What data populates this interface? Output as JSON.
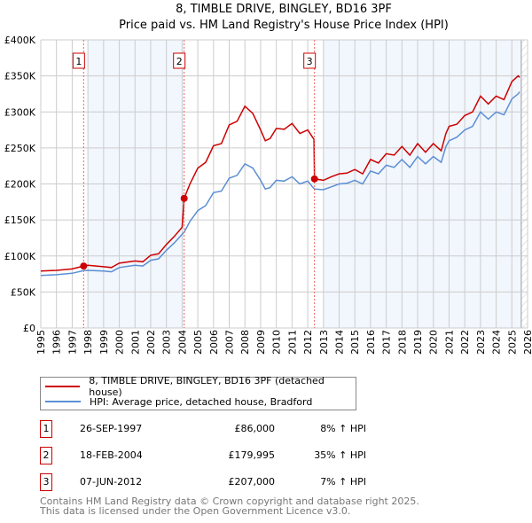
{
  "chart_data": {
    "type": "line",
    "title": "8, TIMBLE DRIVE, BINGLEY, BD16 3PF",
    "subtitle": "Price paid vs. HM Land Registry's House Price Index (HPI)",
    "xlim": [
      1995,
      2026
    ],
    "ylim": [
      0,
      400000
    ],
    "x_ticks": [
      "1995",
      "1996",
      "1997",
      "1998",
      "1999",
      "2000",
      "2001",
      "2002",
      "2003",
      "2004",
      "2005",
      "2006",
      "2007",
      "2008",
      "2009",
      "2010",
      "2011",
      "2012",
      "2013",
      "2014",
      "2015",
      "2016",
      "2017",
      "2018",
      "2019",
      "2020",
      "2021",
      "2022",
      "2023",
      "2024",
      "2025",
      "2026"
    ],
    "y_ticks": [
      {
        "v": 0,
        "label": "£0"
      },
      {
        "v": 50000,
        "label": "£50K"
      },
      {
        "v": 100000,
        "label": "£100K"
      },
      {
        "v": 150000,
        "label": "£150K"
      },
      {
        "v": 200000,
        "label": "£200K"
      },
      {
        "v": 250000,
        "label": "£250K"
      },
      {
        "v": 300000,
        "label": "£300K"
      },
      {
        "v": 350000,
        "label": "£350K"
      },
      {
        "v": 400000,
        "label": "£400K"
      }
    ],
    "grid": true,
    "shaded_ranges": [
      [
        1998,
        2004.13
      ],
      [
        2013,
        2025.6
      ]
    ],
    "hatched_from": 2025.6,
    "series": [
      {
        "name": "8, TIMBLE DRIVE, BINGLEY, BD16 3PF (detached house)",
        "color": "#cc0000",
        "x": [
          1995,
          1996,
          1997,
          1997.73,
          1998,
          1999,
          1999.5,
          2000,
          2001,
          2001.5,
          2002,
          2002.5,
          2003,
          2003.5,
          2004.0,
          2004.13,
          2004.5,
          2005,
          2005.5,
          2006,
          2006.5,
          2007,
          2007.5,
          2008,
          2008.5,
          2009,
          2009.3,
          2009.6,
          2010,
          2010.5,
          2011,
          2011.5,
          2012,
          2012.3,
          2012.4,
          2012.43,
          2013,
          2013.5,
          2014,
          2014.5,
          2015,
          2015.5,
          2016,
          2016.5,
          2017,
          2017.5,
          2018,
          2018.5,
          2019,
          2019.5,
          2020,
          2020.5,
          2020.8,
          2021,
          2021.5,
          2022,
          2022.5,
          2023,
          2023.5,
          2024,
          2024.5,
          2025,
          2025.4,
          2025.5
        ],
        "values": [
          79000,
          80000,
          82000,
          86000,
          87000,
          85000,
          84000,
          90000,
          93000,
          92000,
          101000,
          103000,
          116000,
          127000,
          140000,
          179995,
          200000,
          222000,
          230000,
          253000,
          256000,
          282000,
          287000,
          308000,
          298000,
          275000,
          260000,
          263000,
          277000,
          276000,
          284000,
          270000,
          275000,
          265000,
          262000,
          207000,
          205000,
          210000,
          214000,
          215000,
          220000,
          214000,
          234000,
          229000,
          242000,
          240000,
          252000,
          240000,
          256000,
          244000,
          256000,
          246000,
          270000,
          280000,
          283000,
          295000,
          300000,
          322000,
          311000,
          322000,
          317000,
          342000,
          350000,
          348000
        ]
      },
      {
        "name": "HPI: Average price, detached house, Bradford",
        "color": "#5b8fd4",
        "x": [
          1995,
          1996,
          1997,
          1997.73,
          1998,
          1999,
          1999.5,
          2000,
          2001,
          2001.5,
          2002,
          2002.5,
          2003,
          2003.5,
          2004.0,
          2004.13,
          2004.5,
          2005,
          2005.5,
          2006,
          2006.5,
          2007,
          2007.5,
          2008,
          2008.5,
          2009,
          2009.3,
          2009.6,
          2010,
          2010.5,
          2011,
          2011.5,
          2012,
          2012.3,
          2012.43,
          2013,
          2013.5,
          2014,
          2014.5,
          2015,
          2015.5,
          2016,
          2016.5,
          2017,
          2017.5,
          2018,
          2018.5,
          2019,
          2019.5,
          2020,
          2020.5,
          2020.8,
          2021,
          2021.5,
          2022,
          2022.5,
          2023,
          2023.5,
          2024,
          2024.5,
          2025,
          2025.4,
          2025.5
        ],
        "values": [
          73000,
          74000,
          76000,
          79600,
          80000,
          79000,
          78000,
          84000,
          87000,
          86000,
          94000,
          96000,
          108000,
          118000,
          130000,
          133000,
          148000,
          163000,
          170000,
          188000,
          190000,
          208000,
          212000,
          228000,
          222000,
          205000,
          193000,
          195000,
          205000,
          204000,
          210000,
          200000,
          204000,
          196000,
          193000,
          192000,
          196000,
          200000,
          201000,
          205000,
          200000,
          218000,
          214000,
          226000,
          223000,
          234000,
          223000,
          238000,
          228000,
          238000,
          230000,
          252000,
          260000,
          265000,
          275000,
          280000,
          300000,
          290000,
          300000,
          296000,
          318000,
          325000,
          328000
        ]
      }
    ],
    "sales": [
      {
        "id": "1",
        "x": 1997.73,
        "value": 86000,
        "date": "26-SEP-1997",
        "price": "£86,000",
        "hpi": "8% ↑ HPI"
      },
      {
        "id": "2",
        "x": 2004.13,
        "value": 179995,
        "date": "18-FEB-2004",
        "price": "£179,995",
        "hpi": "35% ↑ HPI"
      },
      {
        "id": "3",
        "x": 2012.43,
        "value": 207000,
        "date": "07-JUN-2012",
        "price": "£207,000",
        "hpi": "7% ↑ HPI"
      }
    ]
  },
  "legend": {
    "property": "8, TIMBLE DRIVE, BINGLEY, BD16 3PF (detached house)",
    "hpi": "HPI: Average price, detached house, Bradford"
  },
  "footer": {
    "line1": "Contains HM Land Registry data © Crown copyright and database right 2025.",
    "line2": "This data is licensed under the Open Government Licence v3.0."
  }
}
